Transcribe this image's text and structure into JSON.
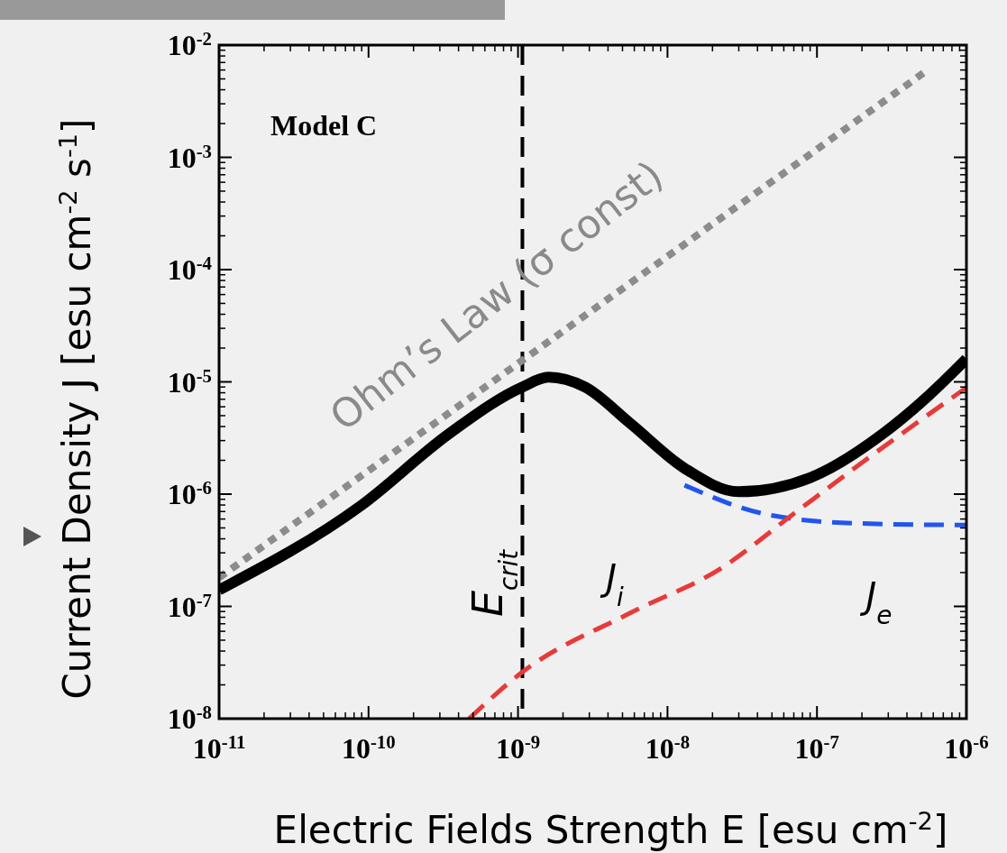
{
  "chart_data": {
    "type": "line",
    "xlabel": "Electric Fields Strength E [esu cm$^{-2}$]",
    "ylabel": "Current Density J [esu cm$^{-2}$ s$^{-1}$]",
    "log": "xy",
    "grid": false,
    "marker": "none",
    "xlim": [
      1e-11,
      1e-06
    ],
    "ylim": [
      1e-08,
      0.01
    ],
    "xticks": [
      {
        "value": 1e-11,
        "label": "10$^{-11}$"
      },
      {
        "value": 1e-10,
        "label": "10$^{-10}$"
      },
      {
        "value": 1e-09,
        "label": "10$^{-9}$"
      },
      {
        "value": 1e-08,
        "label": "10$^{-8}$"
      },
      {
        "value": 1e-07,
        "label": "10$^{-7}$"
      },
      {
        "value": 1e-06,
        "label": "10$^{-6}$"
      }
    ],
    "yticks": [
      {
        "value": 1e-08,
        "label": "10$^{-8}$"
      },
      {
        "value": 1e-07,
        "label": "10$^{-7}$"
      },
      {
        "value": 1e-06,
        "label": "10$^{-6}$"
      },
      {
        "value": 1e-05,
        "label": "10$^{-5}$"
      },
      {
        "value": 0.0001,
        "label": "10$^{-4}$"
      },
      {
        "value": 0.001,
        "label": "10$^{-3}$"
      },
      {
        "value": 0.01,
        "label": "10$^{-2}$"
      }
    ],
    "series": [
      {
        "color": "#8c8c8c",
        "line_style": "dotted",
        "x": [
          1e-11,
          5.5e-07
        ],
        "values": [
          1.8e-07,
          0.006
        ]
      },
      {
        "color": "#000000",
        "line_style": "solid",
        "x": [
          1e-11,
          8.9e-11,
          3.5e-10,
          1.07e-09,
          1.6e-09,
          2.8e-09,
          5.6e-09,
          1.3e-08,
          3e-08,
          9e-08,
          2.8e-07,
          5.5e-07,
          1e-06
        ],
        "values": [
          1.4e-07,
          7.9e-07,
          3.5e-06,
          9e-06,
          1.1e-05,
          9e-06,
          4.3e-06,
          1.7e-06,
          1.05e-06,
          1.4e-06,
          3.5e-06,
          7.4e-06,
          1.6e-05
        ]
      },
      {
        "color": "#2255ee",
        "line_style": "dashed",
        "x": [
          1.3e-08,
          4.6e-08,
          1.8e-07,
          1e-06
        ],
        "values": [
          1.2e-06,
          6.6e-07,
          5.5e-07,
          5.3e-07
        ]
      },
      {
        "color": "#e83a3a",
        "line_style": "dashed",
        "x": [
          4.7e-10,
          1.07e-09,
          5.6e-09,
          2.3e-08,
          6.9e-08,
          2.1e-07,
          1e-06
        ],
        "values": [
          1e-08,
          2.6e-08,
          8.7e-08,
          2.2e-07,
          6.6e-07,
          2e-06,
          8.9e-06
        ]
      }
    ],
    "ref_lines": [
      {
        "axis": "x",
        "value": 1.07e-09,
        "label": "E$_{crit}$",
        "color": "#000000",
        "line_style": "dashed"
      }
    ],
    "annotations": [
      "Model C",
      "Ohm’s Law (σ const)",
      "J$_{i}$",
      "J$_{e}$"
    ]
  }
}
